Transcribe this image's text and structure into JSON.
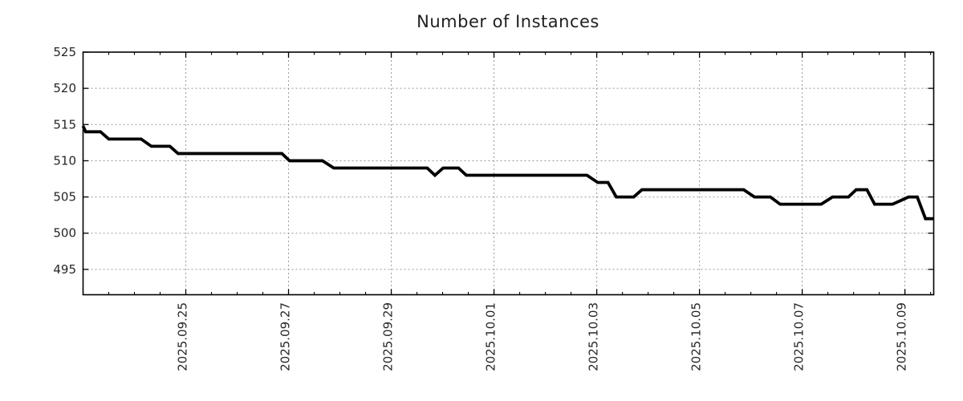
{
  "title": "Number of Instances",
  "colors": {
    "background": "#ffffff",
    "line": "#000000",
    "frame": "#000000",
    "grid": "#999999",
    "tick": "#000000",
    "text": "#262626"
  },
  "chart_data": {
    "type": "line",
    "title": "Number of Instances",
    "xlabel": "",
    "ylabel": "",
    "legend": false,
    "grid": true,
    "grid_style": "dotted",
    "y_axis": {
      "ticks": [
        495,
        500,
        505,
        510,
        515,
        520,
        525
      ],
      "range": [
        491.5,
        525
      ]
    },
    "x_axis": {
      "day_offset_reference": "2025.09.23",
      "range_days": [
        0,
        16.56
      ],
      "minor_tick_interval_days": 0.5,
      "major_ticks": [
        {
          "day": 2,
          "label": "2025.09.25"
        },
        {
          "day": 4,
          "label": "2025.09.27"
        },
        {
          "day": 6,
          "label": "2025.09.29"
        },
        {
          "day": 8,
          "label": "2025.10.01"
        },
        {
          "day": 10,
          "label": "2025.10.03"
        },
        {
          "day": 12,
          "label": "2025.10.05"
        },
        {
          "day": 14,
          "label": "2025.10.07"
        },
        {
          "day": 16,
          "label": "2025.10.09"
        }
      ]
    },
    "series": [
      {
        "name": "instances",
        "color": "#000000",
        "points": [
          [
            0.0,
            514.8
          ],
          [
            0.05,
            514
          ],
          [
            0.34,
            514
          ],
          [
            0.5,
            513
          ],
          [
            1.13,
            513
          ],
          [
            1.33,
            512
          ],
          [
            1.69,
            512
          ],
          [
            1.85,
            511
          ],
          [
            3.87,
            511
          ],
          [
            4.02,
            510
          ],
          [
            4.66,
            510
          ],
          [
            4.88,
            509
          ],
          [
            6.7,
            509
          ],
          [
            6.85,
            508
          ],
          [
            7.01,
            509
          ],
          [
            7.31,
            509
          ],
          [
            7.46,
            508
          ],
          [
            9.81,
            508
          ],
          [
            10.02,
            507
          ],
          [
            10.22,
            507
          ],
          [
            10.38,
            505
          ],
          [
            10.72,
            505
          ],
          [
            10.88,
            506
          ],
          [
            12.86,
            506
          ],
          [
            13.07,
            505
          ],
          [
            13.38,
            505
          ],
          [
            13.57,
            504
          ],
          [
            14.37,
            504
          ],
          [
            14.59,
            505
          ],
          [
            14.9,
            505
          ],
          [
            15.05,
            506
          ],
          [
            15.26,
            506
          ],
          [
            15.41,
            504
          ],
          [
            15.76,
            504
          ],
          [
            16.07,
            505
          ],
          [
            16.24,
            505
          ],
          [
            16.4,
            502
          ],
          [
            16.56,
            502
          ]
        ]
      }
    ]
  }
}
